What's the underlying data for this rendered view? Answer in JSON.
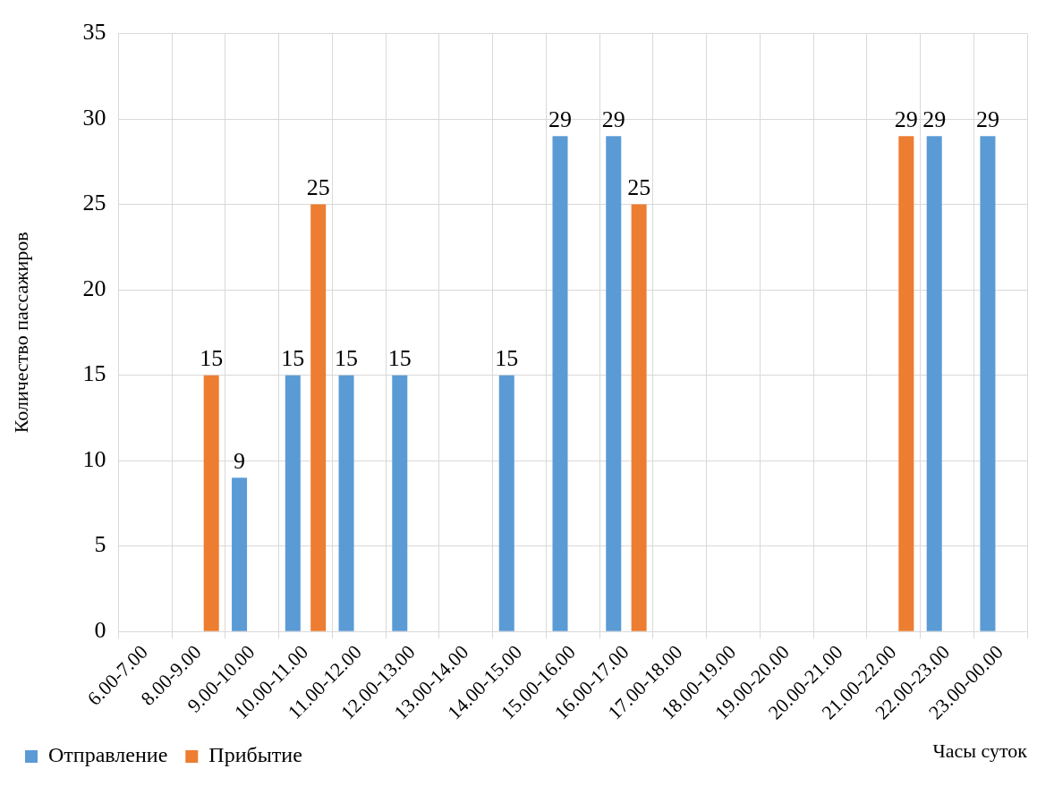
{
  "chart_data": {
    "type": "bar",
    "ylabel": "Количество пассажиров",
    "xlabel": "Часы суток",
    "categories": [
      "6.00-7.00",
      "8.00-9.00",
      "9.00-10.00",
      "10.00-11.00",
      "11.00-12.00",
      "12.00-13.00",
      "13.00-14.00",
      "14.00-15.00",
      "15.00-16.00",
      "16.00-17.00",
      "17.00-18.00",
      "18.00-19.00",
      "19.00-20.00",
      "20.00-21.00",
      "21.00-22.00",
      "22.00-23.00",
      "23.00-00.00"
    ],
    "series": [
      {
        "name": "Отправление",
        "color": "#5b9bd5",
        "values": [
          null,
          null,
          9,
          15,
          15,
          15,
          null,
          15,
          29,
          29,
          null,
          null,
          null,
          null,
          null,
          29,
          29
        ]
      },
      {
        "name": "Прибытие",
        "color": "#ed7d31",
        "values": [
          null,
          15,
          null,
          25,
          null,
          null,
          null,
          null,
          null,
          25,
          null,
          null,
          null,
          null,
          29,
          null,
          null
        ]
      }
    ],
    "ylim": [
      0,
      35
    ],
    "yticks": [
      0,
      5,
      10,
      15,
      20,
      25,
      30,
      35
    ],
    "grid": true,
    "legend": "bottom",
    "data_labels": true
  }
}
